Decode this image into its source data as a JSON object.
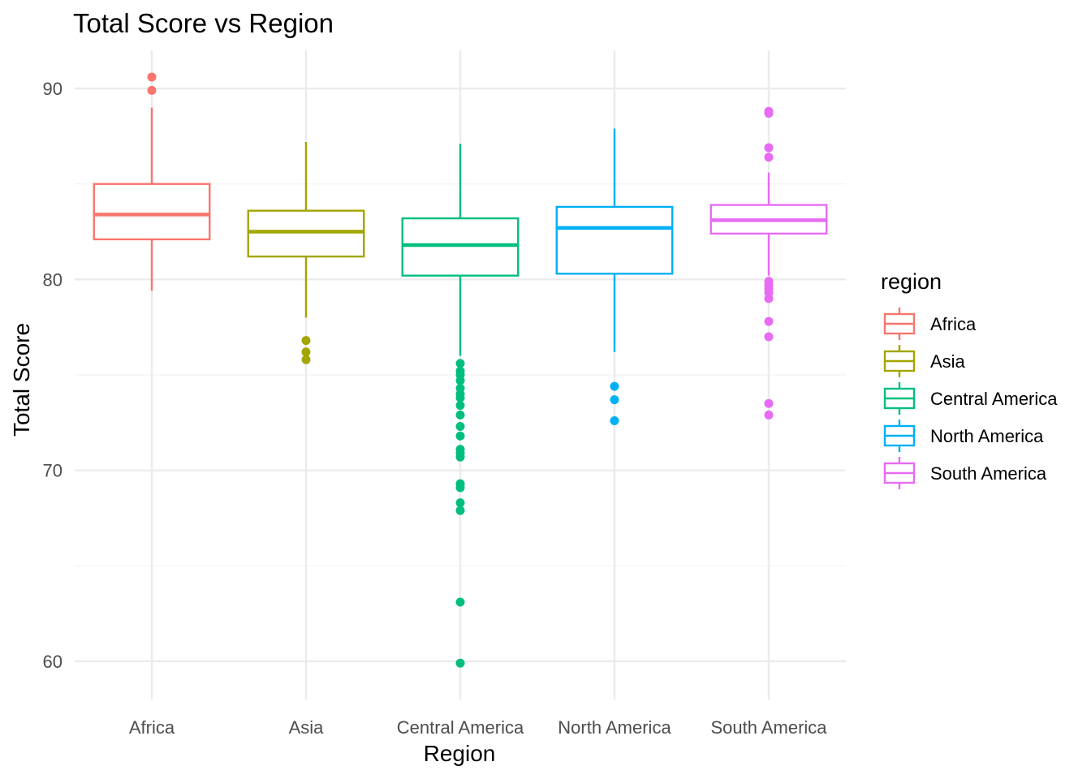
{
  "chart_data": {
    "type": "box",
    "title": "Total Score vs Region",
    "xlabel": "Region",
    "ylabel": "Total Score",
    "ylim": [
      58,
      92
    ],
    "y_ticks": [
      60,
      70,
      80,
      90
    ],
    "grid": true,
    "legend": {
      "title": "region",
      "position": "right"
    },
    "categories": [
      "Africa",
      "Asia",
      "Central America",
      "North America",
      "South America"
    ],
    "series": [
      {
        "name": "Africa",
        "color": "#F8766D",
        "q1": 82.1,
        "median": 83.4,
        "q3": 85.0,
        "whisker_low": 79.4,
        "whisker_high": 89.0,
        "outliers": [
          90.6,
          89.9
        ]
      },
      {
        "name": "Asia",
        "color": "#A3A500",
        "q1": 81.2,
        "median": 82.5,
        "q3": 83.6,
        "whisker_low": 78.0,
        "whisker_high": 87.2,
        "outliers": [
          76.8,
          76.2,
          75.8
        ]
      },
      {
        "name": "Central America",
        "color": "#00BF7D",
        "q1": 80.2,
        "median": 81.8,
        "q3": 83.2,
        "whisker_low": 76.0,
        "whisker_high": 87.1,
        "outliers": [
          75.6,
          75.2,
          75.0,
          74.7,
          74.3,
          74.0,
          73.8,
          73.4,
          72.9,
          72.3,
          71.8,
          71.1,
          70.9,
          70.7,
          69.3,
          69.1,
          68.3,
          67.9,
          63.1,
          59.9
        ]
      },
      {
        "name": "North America",
        "color": "#00B0F6",
        "q1": 80.3,
        "median": 82.7,
        "q3": 83.8,
        "whisker_low": 76.2,
        "whisker_high": 87.9,
        "outliers": [
          74.4,
          73.7,
          72.6
        ]
      },
      {
        "name": "South America",
        "color": "#E76BF3",
        "q1": 82.4,
        "median": 83.1,
        "q3": 83.9,
        "whisker_low": 80.2,
        "whisker_high": 85.6,
        "outliers": [
          88.8,
          88.7,
          86.9,
          86.4,
          79.9,
          79.7,
          79.5,
          79.3,
          79.0,
          77.8,
          77.0,
          73.5,
          72.9
        ]
      }
    ]
  }
}
